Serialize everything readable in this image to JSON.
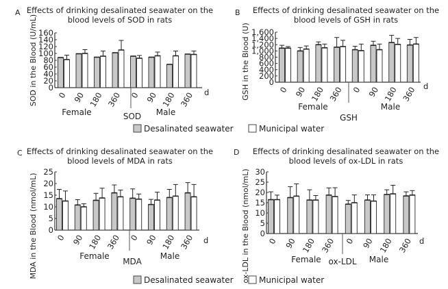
{
  "legend": {
    "items": [
      {
        "label": "Desalinated seawater",
        "color": "#c8c8c8"
      },
      {
        "label": "Municipal water",
        "color": "#ffffff"
      }
    ]
  },
  "chart_data": [
    {
      "panel": "A",
      "type": "bar",
      "title_line1": "Effects of drinking desalinated seawater on the",
      "title_line2": "blood levels of SOD in rats",
      "ylabel": "SOD in the Blood (U/mL)",
      "xlabel": "d",
      "group_label": "SOD",
      "sex_labels": [
        "Female",
        "Male"
      ],
      "categories": [
        "0",
        "90",
        "180",
        "360",
        "0",
        "90",
        "180",
        "360"
      ],
      "yticks": [
        "0",
        "20",
        "40",
        "60",
        "80",
        "100",
        "120",
        "140",
        "160"
      ],
      "ylim": [
        0,
        160
      ],
      "series": [
        {
          "name": "Desalinated seawater",
          "values": [
            88,
            99,
            89,
            102,
            92,
            89,
            68,
            98
          ],
          "errors": [
            0,
            0,
            0,
            0,
            0,
            0,
            0,
            0
          ]
        },
        {
          "name": "Municipal water",
          "values": [
            82,
            100,
            92,
            110,
            86,
            93,
            93,
            97
          ],
          "errors": [
            13,
            11,
            15,
            28,
            8,
            11,
            14,
            10
          ]
        }
      ]
    },
    {
      "panel": "B",
      "type": "bar",
      "title_line1": "Effects of drinking desalinated seawater on the",
      "title_line2": "blood levels of GSH in rats",
      "ylabel": "GSH in the Blood (U)",
      "xlabel": "d",
      "group_label": "GSH",
      "sex_labels": [
        "Female",
        "Male"
      ],
      "categories": [
        "0",
        "90",
        "180",
        "360",
        "0",
        "90",
        "180",
        "360"
      ],
      "yticks": [
        "0",
        "200",
        "400",
        "600",
        "800",
        "1,000",
        "1,200",
        "1,400",
        "1,600"
      ],
      "ylim": [
        0,
        1600
      ],
      "series": [
        {
          "name": "Desalinated seawater",
          "values": [
            1090,
            1000,
            1200,
            1120,
            1040,
            1180,
            1270,
            1190
          ],
          "errors": [
            90,
            110,
            90,
            310,
            110,
            130,
            230,
            180
          ]
        },
        {
          "name": "Municipal water",
          "values": [
            1090,
            1060,
            1100,
            1140,
            1010,
            1040,
            1210,
            1220
          ],
          "errors": [
            50,
            100,
            120,
            200,
            210,
            180,
            190,
            210
          ]
        }
      ]
    },
    {
      "panel": "C",
      "type": "bar",
      "title_line1": "Effects of drinking desalinated seawater on the",
      "title_line2": "blood levels of MDA in rats",
      "ylabel": "MDA in the Blood (nmol/mL)",
      "xlabel": "d",
      "group_label": "MDA",
      "sex_labels": [
        "Female",
        "Male"
      ],
      "categories": [
        "0",
        "90",
        "180",
        "360",
        "0",
        "90",
        "180",
        "360"
      ],
      "yticks": [
        "0",
        "5",
        "10",
        "15",
        "20",
        "25"
      ],
      "ylim": [
        0,
        25
      ],
      "series": [
        {
          "name": "Desalinated seawater",
          "values": [
            13.5,
            10.8,
            12.8,
            16.0,
            13.7,
            11.0,
            14.0,
            16.0
          ],
          "errors": [
            4.0,
            2.3,
            3.0,
            3.4,
            4.0,
            2.2,
            3.5,
            4.4
          ]
        },
        {
          "name": "Municipal water",
          "values": [
            12.5,
            10.0,
            13.8,
            14.3,
            13.3,
            12.9,
            14.6,
            14.3
          ],
          "errors": [
            4.3,
            1.3,
            4.2,
            2.9,
            2.2,
            3.4,
            5.0,
            5.3
          ]
        }
      ]
    },
    {
      "panel": "D",
      "type": "bar",
      "title_line1": "Effects of drinking desalinated seawater on the",
      "title_line2": "blood levels of ox-LDL in rats",
      "ylabel": "ox-LDL in the Blood (nmol/mL)",
      "xlabel": "d",
      "group_label": "ox-LDL",
      "sex_labels": [
        "Female",
        "Male"
      ],
      "categories": [
        "0",
        "90",
        "180",
        "360",
        "0",
        "90",
        "180",
        "360"
      ],
      "yticks": [
        "0",
        "5",
        "10",
        "15",
        "20",
        "25",
        "30"
      ],
      "ylim": [
        0,
        30
      ],
      "series": [
        {
          "name": "Desalinated seawater",
          "values": [
            16.5,
            17.5,
            16.3,
            18.7,
            14.3,
            16.3,
            19.0,
            18.3
          ],
          "errors": [
            3.8,
            5.3,
            5.0,
            3.5,
            1.8,
            2.5,
            2.3,
            2.0
          ]
        },
        {
          "name": "Municipal water",
          "values": [
            16.5,
            18.2,
            16.3,
            18.0,
            15.0,
            15.8,
            19.3,
            18.7
          ],
          "errors": [
            2.2,
            6.0,
            2.2,
            4.3,
            3.8,
            3.0,
            4.2,
            2.2
          ]
        }
      ]
    }
  ]
}
